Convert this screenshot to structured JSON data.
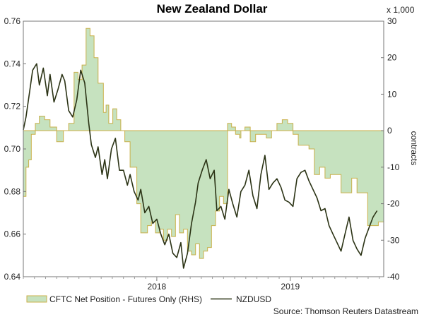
{
  "chart_data": {
    "type": "line",
    "title": "New Zealand Dollar",
    "source": "Source: Thomson Reuters Datastream",
    "left_axis": {
      "ylim": [
        0.64,
        0.76
      ],
      "ticks": [
        "0.64",
        "0.66",
        "0.68",
        "0.70",
        "0.72",
        "0.74",
        "0.76"
      ]
    },
    "right_axis": {
      "unit_note": "x 1,000",
      "label": "contracts",
      "ylim": [
        -40,
        30
      ],
      "ticks": [
        "-40",
        "-30",
        "-20",
        "-10",
        "0",
        "10",
        "20",
        "30"
      ]
    },
    "x_axis": {
      "range": [
        2017.0,
        2019.7
      ],
      "ticks": [
        "2018",
        "2019"
      ],
      "tick_values": [
        2018.0,
        2019.0
      ]
    },
    "colors": {
      "area_fill": "#c6e2bf",
      "area_line": "#c9b04a",
      "line": "#2b3315"
    },
    "series": [
      {
        "name": "CFTC Net Position - Futures Only (RHS)",
        "kind": "area",
        "axis": "right",
        "x": [
          2017.0,
          2017.02,
          2017.04,
          2017.06,
          2017.09,
          2017.12,
          2017.16,
          2017.2,
          2017.25,
          2017.3,
          2017.34,
          2017.38,
          2017.41,
          2017.44,
          2017.47,
          2017.5,
          2017.53,
          2017.56,
          2017.6,
          2017.62,
          2017.64,
          2017.67,
          2017.7,
          2017.73,
          2017.76,
          2017.8,
          2017.85,
          2017.88,
          2017.9,
          2017.93,
          2017.96,
          2017.99,
          2018.02,
          2018.05,
          2018.08,
          2018.11,
          2018.14,
          2018.17,
          2018.2,
          2018.23,
          2018.26,
          2018.29,
          2018.32,
          2018.35,
          2018.38,
          2018.41,
          2018.44,
          2018.47,
          2018.5,
          2018.53,
          2018.56,
          2018.59,
          2018.62,
          2018.63,
          2018.66,
          2018.7,
          2018.74,
          2018.78,
          2018.82,
          2018.86,
          2018.9,
          2018.94,
          2018.98,
          2019.02,
          2019.06,
          2019.1,
          2019.14,
          2019.18,
          2019.22,
          2019.26,
          2019.3,
          2019.34,
          2019.38,
          2019.42,
          2019.46,
          2019.5,
          2019.54,
          2019.58,
          2019.62,
          2019.66
        ],
        "values": [
          -18,
          -10,
          -8,
          -1,
          2,
          4,
          3,
          1,
          -3,
          0,
          2,
          16,
          14,
          18,
          28,
          26,
          20,
          13,
          5,
          7,
          2,
          6,
          3,
          0,
          -3,
          -10,
          -20,
          -28,
          -28,
          -26,
          -25,
          -28,
          -27,
          -30,
          -27,
          -29,
          -23,
          -28,
          -27,
          -33,
          -34,
          -31,
          -35,
          -33,
          -32,
          -26,
          -22,
          -18,
          -20,
          2,
          1,
          -1,
          -2,
          0,
          1,
          -3,
          -1,
          -1,
          -2,
          0,
          2,
          3,
          2,
          -1,
          -4,
          -4,
          -5,
          -12,
          -10,
          -13,
          -12,
          -12,
          -17,
          -17,
          -13,
          -17,
          -17,
          -26,
          -26,
          -25
        ]
      },
      {
        "name": "NZDUSD",
        "kind": "line",
        "axis": "left",
        "x": [
          2017.0,
          2017.02,
          2017.05,
          2017.07,
          2017.1,
          2017.12,
          2017.15,
          2017.18,
          2017.2,
          2017.23,
          2017.26,
          2017.29,
          2017.31,
          2017.34,
          2017.37,
          2017.4,
          2017.43,
          2017.46,
          2017.49,
          2017.51,
          2017.54,
          2017.56,
          2017.59,
          2017.61,
          2017.63,
          2017.66,
          2017.69,
          2017.72,
          2017.75,
          2017.78,
          2017.8,
          2017.83,
          2017.86,
          2017.88,
          2017.91,
          2017.94,
          2017.97,
          2018.0,
          2018.03,
          2018.06,
          2018.09,
          2018.12,
          2018.15,
          2018.18,
          2018.2,
          2018.23,
          2018.26,
          2018.29,
          2018.31,
          2018.34,
          2018.37,
          2018.4,
          2018.43,
          2018.45,
          2018.48,
          2018.51,
          2018.54,
          2018.57,
          2018.6,
          2018.63,
          2018.66,
          2018.69,
          2018.72,
          2018.75,
          2018.78,
          2018.81,
          2018.84,
          2018.87,
          2018.9,
          2018.93,
          2018.96,
          2018.99,
          2019.02,
          2019.05,
          2019.08,
          2019.11,
          2019.14,
          2019.17,
          2019.2,
          2019.23,
          2019.26,
          2019.29,
          2019.32,
          2019.35,
          2019.38,
          2019.41,
          2019.44,
          2019.47,
          2019.5,
          2019.53,
          2019.56,
          2019.59,
          2019.62,
          2019.65
        ],
        "values": [
          0.709,
          0.715,
          0.728,
          0.737,
          0.74,
          0.73,
          0.738,
          0.725,
          0.735,
          0.722,
          0.728,
          0.735,
          0.732,
          0.718,
          0.715,
          0.723,
          0.737,
          0.731,
          0.712,
          0.702,
          0.696,
          0.701,
          0.688,
          0.695,
          0.686,
          0.7,
          0.705,
          0.69,
          0.69,
          0.683,
          0.688,
          0.68,
          0.676,
          0.681,
          0.67,
          0.673,
          0.665,
          0.667,
          0.66,
          0.655,
          0.66,
          0.651,
          0.649,
          0.656,
          0.644,
          0.651,
          0.665,
          0.675,
          0.684,
          0.69,
          0.695,
          0.686,
          0.69,
          0.671,
          0.673,
          0.667,
          0.681,
          0.674,
          0.668,
          0.68,
          0.683,
          0.69,
          0.678,
          0.672,
          0.688,
          0.697,
          0.681,
          0.684,
          0.686,
          0.682,
          0.676,
          0.675,
          0.673,
          0.686,
          0.689,
          0.69,
          0.685,
          0.681,
          0.677,
          0.671,
          0.672,
          0.664,
          0.66,
          0.656,
          0.652,
          0.66,
          0.668,
          0.657,
          0.653,
          0.65,
          0.658,
          0.663,
          0.668,
          0.671
        ]
      }
    ],
    "legend": {
      "position": "bottom-left",
      "entries": [
        "CFTC Net Position - Futures Only (RHS)",
        "NZDUSD"
      ]
    },
    "grid": false
  }
}
